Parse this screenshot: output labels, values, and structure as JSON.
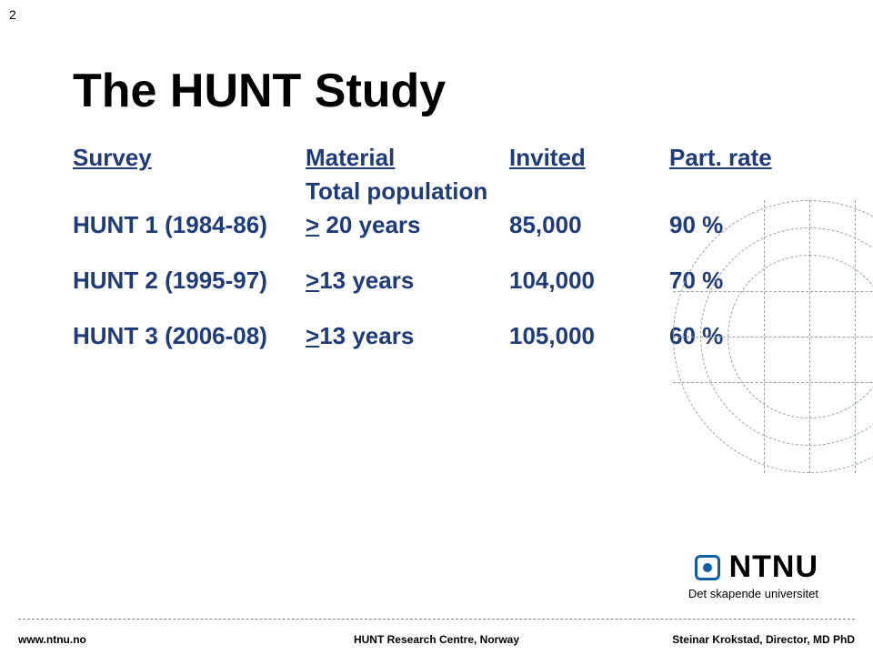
{
  "page_number": "2",
  "title": "The HUNT Study",
  "title_color": "#000000",
  "accent_color": "#1f3b7a",
  "table": {
    "headers": {
      "survey": "Survey",
      "material": "Material",
      "invited": "Invited",
      "rate": "Part. rate"
    },
    "subhead_material": "Total population",
    "rows": [
      {
        "survey": "HUNT 1 (1984-86)",
        "material_prefix": ">",
        "material_rest": " 20 years",
        "invited": "85,000",
        "rate": "90 %"
      },
      {
        "survey": "HUNT 2 (1995-97)",
        "material_prefix": ">",
        "material_rest": "13 years",
        "invited": "104,000",
        "rate": "70 %"
      },
      {
        "survey": "HUNT 3 (2006-08)",
        "material_prefix": ">",
        "material_rest": "13 years",
        "invited": "105,000",
        "rate": "60 %"
      }
    ]
  },
  "logo": {
    "text": "NTNU",
    "sub": "Det skapende universitet"
  },
  "footer": {
    "left": "www.ntnu.no",
    "center": "HUNT Research Centre, Norway",
    "right": "Steinar Krokstad, Director, MD PhD"
  }
}
